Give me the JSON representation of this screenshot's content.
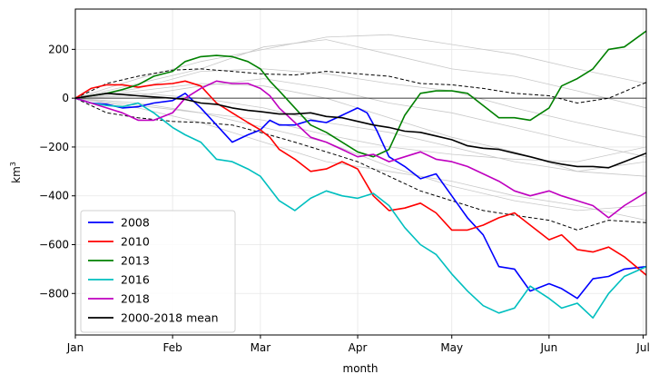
{
  "chart_data": {
    "type": "line",
    "title": "",
    "xlabel": "month",
    "ylabel": "km",
    "ylabel_superscript": "3",
    "xlim": [
      0,
      182
    ],
    "ylim": [
      -970,
      365
    ],
    "grid": true,
    "legend_placement": "lower-left",
    "x_ticks": [
      {
        "value": 0,
        "label": "Jan"
      },
      {
        "value": 31,
        "label": "Feb"
      },
      {
        "value": 59,
        "label": "Mar"
      },
      {
        "value": 90,
        "label": "Apr"
      },
      {
        "value": 120,
        "label": "May"
      },
      {
        "value": 151,
        "label": "Jun"
      },
      {
        "value": 181,
        "label": "Jul"
      }
    ],
    "y_ticks": [
      {
        "value": 200,
        "label": "200"
      },
      {
        "value": 0,
        "label": "0"
      },
      {
        "value": -200,
        "label": "−200"
      },
      {
        "value": -400,
        "label": "−400"
      },
      {
        "value": -600,
        "label": "−600"
      },
      {
        "value": -800,
        "label": "−800"
      }
    ],
    "series": [
      {
        "name": "2008",
        "color": "#0000ff",
        "x": [
          0,
          5,
          10,
          15,
          20,
          25,
          31,
          35,
          40,
          45,
          50,
          55,
          59,
          62,
          65,
          70,
          75,
          80,
          85,
          90,
          93,
          96,
          100,
          105,
          110,
          115,
          120,
          125,
          130,
          135,
          140,
          145,
          151,
          155,
          160,
          165,
          170,
          175,
          182
        ],
        "y": [
          0,
          -20,
          -25,
          -40,
          -35,
          -20,
          -10,
          20,
          -40,
          -110,
          -180,
          -150,
          -130,
          -90,
          -110,
          -110,
          -90,
          -100,
          -70,
          -40,
          -60,
          -130,
          -240,
          -280,
          -330,
          -310,
          -400,
          -490,
          -560,
          -690,
          -700,
          -790,
          -760,
          -780,
          -820,
          -740,
          -730,
          -700,
          -690
        ]
      },
      {
        "name": "2010",
        "color": "#ff0000",
        "x": [
          0,
          5,
          10,
          15,
          20,
          25,
          31,
          35,
          40,
          45,
          50,
          55,
          59,
          62,
          65,
          70,
          75,
          80,
          85,
          90,
          95,
          100,
          105,
          110,
          115,
          120,
          125,
          130,
          135,
          140,
          145,
          151,
          155,
          160,
          165,
          170,
          175,
          182
        ],
        "y": [
          0,
          40,
          55,
          55,
          45,
          55,
          60,
          70,
          50,
          -20,
          -60,
          -100,
          -130,
          -160,
          -210,
          -250,
          -300,
          -290,
          -260,
          -290,
          -400,
          -460,
          -450,
          -430,
          -470,
          -540,
          -540,
          -520,
          -490,
          -470,
          -520,
          -580,
          -560,
          -620,
          -630,
          -610,
          -650,
          -725
        ]
      },
      {
        "name": "2013",
        "color": "#008000",
        "x": [
          0,
          5,
          10,
          15,
          20,
          25,
          31,
          35,
          40,
          45,
          50,
          55,
          59,
          62,
          65,
          70,
          75,
          80,
          85,
          90,
          95,
          100,
          105,
          110,
          115,
          120,
          125,
          130,
          135,
          140,
          145,
          151,
          155,
          160,
          165,
          170,
          175,
          182
        ],
        "y": [
          0,
          10,
          20,
          35,
          55,
          90,
          110,
          150,
          170,
          175,
          170,
          150,
          120,
          70,
          30,
          -40,
          -110,
          -140,
          -180,
          -220,
          -240,
          -210,
          -70,
          20,
          30,
          30,
          20,
          -30,
          -80,
          -80,
          -90,
          -40,
          50,
          80,
          120,
          200,
          210,
          275
        ]
      },
      {
        "name": "2016",
        "color": "#00bfbf",
        "x": [
          0,
          5,
          10,
          15,
          20,
          25,
          31,
          35,
          40,
          45,
          50,
          55,
          59,
          62,
          65,
          70,
          75,
          80,
          85,
          90,
          95,
          100,
          105,
          110,
          115,
          120,
          125,
          130,
          135,
          140,
          145,
          151,
          155,
          160,
          165,
          170,
          175,
          182
        ],
        "y": [
          0,
          -20,
          -30,
          -35,
          -20,
          -60,
          -120,
          -150,
          -180,
          -250,
          -260,
          -290,
          -320,
          -370,
          -420,
          -460,
          -410,
          -380,
          -400,
          -410,
          -390,
          -440,
          -530,
          -600,
          -640,
          -720,
          -790,
          -850,
          -880,
          -860,
          -770,
          -820,
          -860,
          -840,
          -900,
          -800,
          -730,
          -690
        ]
      },
      {
        "name": "2018",
        "color": "#bf00bf",
        "x": [
          0,
          5,
          10,
          15,
          20,
          25,
          31,
          35,
          40,
          45,
          50,
          55,
          59,
          62,
          65,
          70,
          75,
          80,
          85,
          90,
          95,
          100,
          105,
          110,
          115,
          120,
          125,
          130,
          135,
          140,
          145,
          151,
          155,
          160,
          165,
          170,
          175,
          182
        ],
        "y": [
          0,
          -20,
          -40,
          -60,
          -90,
          -90,
          -60,
          0,
          40,
          70,
          60,
          60,
          40,
          10,
          -40,
          -100,
          -160,
          -180,
          -210,
          -240,
          -230,
          -260,
          -240,
          -220,
          -250,
          -260,
          -280,
          -310,
          -340,
          -380,
          -400,
          -380,
          -400,
          -420,
          -440,
          -490,
          -440,
          -385
        ]
      },
      {
        "name": "2000-2018 mean",
        "color": "#000000",
        "x": [
          0,
          5,
          10,
          15,
          20,
          25,
          31,
          35,
          40,
          45,
          50,
          55,
          59,
          65,
          70,
          75,
          80,
          85,
          90,
          95,
          100,
          105,
          110,
          115,
          120,
          125,
          130,
          135,
          140,
          145,
          151,
          155,
          160,
          165,
          170,
          175,
          182
        ],
        "y": [
          0,
          10,
          20,
          15,
          10,
          5,
          0,
          -5,
          -20,
          -25,
          -40,
          -50,
          -55,
          -65,
          -65,
          -60,
          -75,
          -80,
          -95,
          -110,
          -120,
          -135,
          -140,
          -155,
          -170,
          -195,
          -205,
          -210,
          -225,
          -240,
          -260,
          -270,
          -280,
          -280,
          -285,
          -260,
          -225
        ]
      }
    ],
    "band_lines": [
      {
        "color": "#000000",
        "dashed": true,
        "x": [
          0,
          10,
          20,
          31,
          40,
          50,
          59,
          70,
          80,
          90,
          100,
          110,
          120,
          130,
          140,
          151,
          160,
          170,
          182
        ],
        "y": [
          0,
          60,
          90,
          115,
          120,
          110,
          100,
          95,
          110,
          100,
          90,
          60,
          55,
          40,
          20,
          10,
          -20,
          0,
          65
        ]
      },
      {
        "color": "#000000",
        "dashed": true,
        "x": [
          0,
          10,
          20,
          31,
          40,
          50,
          59,
          70,
          80,
          90,
          100,
          110,
          120,
          130,
          140,
          151,
          160,
          170,
          182
        ],
        "y": [
          0,
          -60,
          -80,
          -95,
          -100,
          -110,
          -140,
          -180,
          -220,
          -260,
          -320,
          -380,
          -420,
          -460,
          -480,
          -500,
          -540,
          -500,
          -510
        ]
      }
    ],
    "background_lines": [
      {
        "x": [
          0,
          20,
          40,
          60,
          80,
          100,
          120,
          140,
          160,
          182
        ],
        "y": [
          0,
          80,
          150,
          200,
          250,
          260,
          220,
          180,
          120,
          60
        ]
      },
      {
        "x": [
          0,
          20,
          40,
          60,
          80,
          100,
          120,
          140,
          160,
          182
        ],
        "y": [
          0,
          60,
          120,
          210,
          240,
          180,
          120,
          90,
          30,
          -40
        ]
      },
      {
        "x": [
          0,
          20,
          40,
          60,
          80,
          100,
          120,
          140,
          160,
          182
        ],
        "y": [
          0,
          40,
          110,
          120,
          100,
          60,
          30,
          -40,
          -100,
          -160
        ]
      },
      {
        "x": [
          0,
          20,
          40,
          60,
          80,
          100,
          120,
          140,
          160,
          182
        ],
        "y": [
          0,
          30,
          60,
          50,
          0,
          -80,
          -160,
          -220,
          -300,
          -320
        ]
      },
      {
        "x": [
          0,
          20,
          40,
          60,
          80,
          100,
          120,
          140,
          160,
          182
        ],
        "y": [
          0,
          -20,
          -60,
          -120,
          -180,
          -280,
          -360,
          -420,
          -460,
          -440
        ]
      },
      {
        "x": [
          0,
          20,
          40,
          60,
          80,
          100,
          120,
          140,
          160,
          182
        ],
        "y": [
          0,
          -40,
          -100,
          -180,
          -260,
          -300,
          -340,
          -400,
          -440,
          -500
        ]
      },
      {
        "x": [
          0,
          20,
          40,
          60,
          80,
          100,
          120,
          140,
          160,
          182
        ],
        "y": [
          0,
          20,
          0,
          -40,
          -100,
          -140,
          -200,
          -260,
          -300,
          -260
        ]
      },
      {
        "x": [
          0,
          20,
          40,
          60,
          80,
          100,
          120,
          140,
          160,
          182
        ],
        "y": [
          0,
          -30,
          -60,
          -90,
          -150,
          -200,
          -230,
          -250,
          -260,
          -200
        ]
      },
      {
        "x": [
          0,
          20,
          40,
          60,
          80,
          100,
          120,
          140,
          160,
          182
        ],
        "y": [
          0,
          10,
          50,
          80,
          40,
          -20,
          -60,
          -120,
          -180,
          -240
        ]
      }
    ],
    "legend": [
      "2008",
      "2010",
      "2013",
      "2016",
      "2018",
      "2000-2018 mean"
    ]
  }
}
